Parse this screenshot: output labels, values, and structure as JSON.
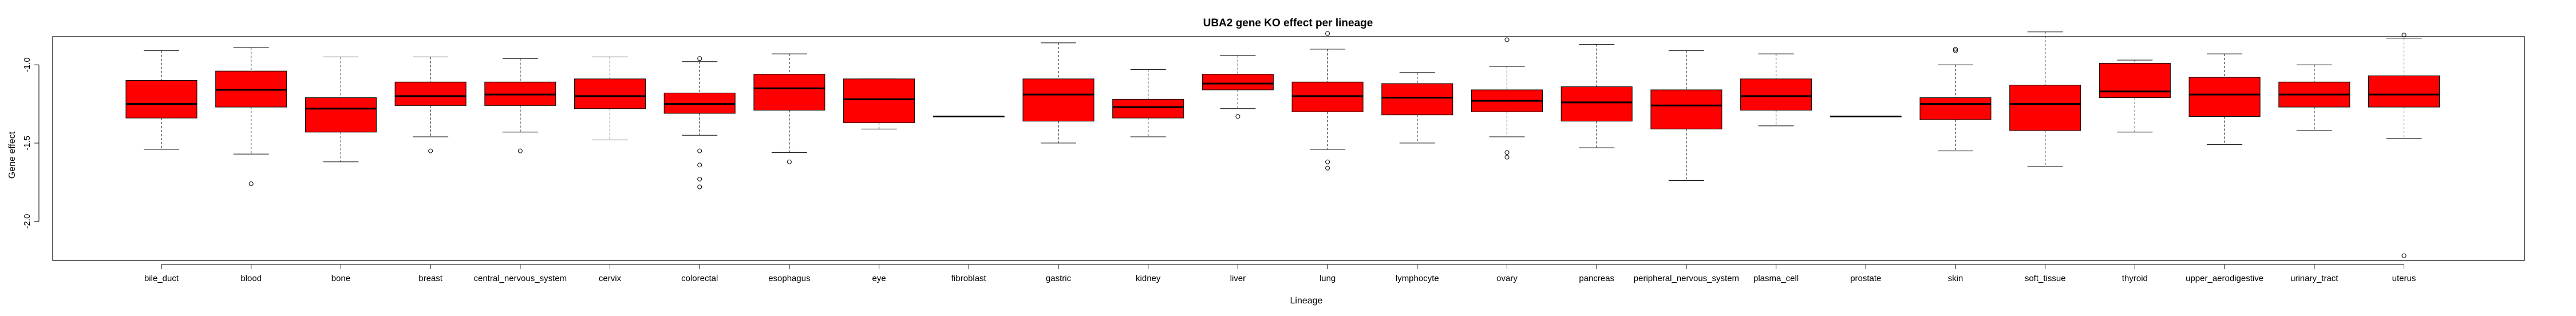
{
  "chart_data": {
    "type": "boxplot",
    "title": "UBA2 gene KO effect per lineage",
    "xlabel": "Lineage",
    "ylabel": "Gene effect",
    "ylim": [
      -2.25,
      -0.82
    ],
    "yticks": [
      -1.0,
      -1.5,
      -2.0
    ],
    "ytick_labels": [
      "-1.0",
      "-1.5",
      "-2.0"
    ],
    "grid": false,
    "legend": "none",
    "box_color": "#ff0000",
    "categories": [
      "bile_duct",
      "blood",
      "bone",
      "breast",
      "central_nervous_system",
      "cervix",
      "colorectal",
      "esophagus",
      "eye",
      "fibroblast",
      "gastric",
      "kidney",
      "liver",
      "lung",
      "lymphocyte",
      "ovary",
      "pancreas",
      "peripheral_nervous_system",
      "plasma_cell",
      "prostate",
      "skin",
      "soft_tissue",
      "thyroid",
      "upper_aerodigestive",
      "urinary_tract",
      "uterus"
    ],
    "boxes": [
      {
        "whisker_low": -1.54,
        "q1": -1.34,
        "median": -1.25,
        "q3": -1.1,
        "whisker_high": -0.91,
        "outliers": []
      },
      {
        "whisker_low": -1.57,
        "q1": -1.27,
        "median": -1.16,
        "q3": -1.04,
        "whisker_high": -0.89,
        "outliers": [
          -1.76
        ]
      },
      {
        "whisker_low": -1.62,
        "q1": -1.43,
        "median": -1.28,
        "q3": -1.21,
        "whisker_high": -0.95,
        "outliers": []
      },
      {
        "whisker_low": -1.46,
        "q1": -1.26,
        "median": -1.2,
        "q3": -1.11,
        "whisker_high": -0.95,
        "outliers": [
          -1.55
        ]
      },
      {
        "whisker_low": -1.43,
        "q1": -1.26,
        "median": -1.19,
        "q3": -1.11,
        "whisker_high": -0.96,
        "outliers": [
          -1.55
        ]
      },
      {
        "whisker_low": -1.48,
        "q1": -1.28,
        "median": -1.2,
        "q3": -1.09,
        "whisker_high": -0.95,
        "outliers": []
      },
      {
        "whisker_low": -1.45,
        "q1": -1.31,
        "median": -1.25,
        "q3": -1.18,
        "whisker_high": -0.98,
        "outliers": [
          -0.96,
          -1.55,
          -1.64,
          -1.73,
          -1.78
        ]
      },
      {
        "whisker_low": -1.56,
        "q1": -1.29,
        "median": -1.15,
        "q3": -1.06,
        "whisker_high": -0.93,
        "outliers": [
          -1.62
        ]
      },
      {
        "whisker_low": -1.41,
        "q1": -1.37,
        "median": -1.22,
        "q3": -1.09,
        "whisker_high": -1.09,
        "outliers": []
      },
      {
        "whisker_low": -1.33,
        "q1": -1.33,
        "median": -1.33,
        "q3": -1.33,
        "whisker_high": -1.33,
        "outliers": []
      },
      {
        "whisker_low": -1.5,
        "q1": -1.36,
        "median": -1.19,
        "q3": -1.09,
        "whisker_high": -0.86,
        "outliers": []
      },
      {
        "whisker_low": -1.46,
        "q1": -1.34,
        "median": -1.27,
        "q3": -1.22,
        "whisker_high": -1.03,
        "outliers": []
      },
      {
        "whisker_low": -1.28,
        "q1": -1.16,
        "median": -1.12,
        "q3": -1.06,
        "whisker_high": -0.94,
        "outliers": [
          -1.33
        ]
      },
      {
        "whisker_low": -1.54,
        "q1": -1.3,
        "median": -1.2,
        "q3": -1.11,
        "whisker_high": -0.9,
        "outliers": [
          -0.8,
          -1.62,
          -1.66
        ]
      },
      {
        "whisker_low": -1.5,
        "q1": -1.32,
        "median": -1.21,
        "q3": -1.12,
        "whisker_high": -1.05,
        "outliers": []
      },
      {
        "whisker_low": -1.46,
        "q1": -1.3,
        "median": -1.23,
        "q3": -1.16,
        "whisker_high": -1.01,
        "outliers": [
          -0.84,
          -1.56,
          -1.59
        ]
      },
      {
        "whisker_low": -1.53,
        "q1": -1.36,
        "median": -1.24,
        "q3": -1.14,
        "whisker_high": -0.87,
        "outliers": []
      },
      {
        "whisker_low": -1.74,
        "q1": -1.41,
        "median": -1.26,
        "q3": -1.16,
        "whisker_high": -0.91,
        "outliers": []
      },
      {
        "whisker_low": -1.39,
        "q1": -1.29,
        "median": -1.2,
        "q3": -1.09,
        "whisker_high": -0.93,
        "outliers": []
      },
      {
        "whisker_low": -1.33,
        "q1": -1.33,
        "median": -1.33,
        "q3": -1.33,
        "whisker_high": -1.33,
        "outliers": []
      },
      {
        "whisker_low": -1.55,
        "q1": -1.35,
        "median": -1.25,
        "q3": -1.21,
        "whisker_high": -1.0,
        "outliers": [
          -0.91,
          -0.9
        ]
      },
      {
        "whisker_low": -1.65,
        "q1": -1.42,
        "median": -1.25,
        "q3": -1.13,
        "whisker_high": -0.79,
        "outliers": []
      },
      {
        "whisker_low": -1.43,
        "q1": -1.21,
        "median": -1.17,
        "q3": -0.99,
        "whisker_high": -0.97,
        "outliers": []
      },
      {
        "whisker_low": -1.51,
        "q1": -1.33,
        "median": -1.19,
        "q3": -1.08,
        "whisker_high": -0.93,
        "outliers": []
      },
      {
        "whisker_low": -1.42,
        "q1": -1.27,
        "median": -1.19,
        "q3": -1.11,
        "whisker_high": -1.0,
        "outliers": []
      },
      {
        "whisker_low": -1.47,
        "q1": -1.27,
        "median": -1.19,
        "q3": -1.07,
        "whisker_high": -0.83,
        "outliers": [
          -0.81,
          -2.22
        ]
      }
    ]
  }
}
